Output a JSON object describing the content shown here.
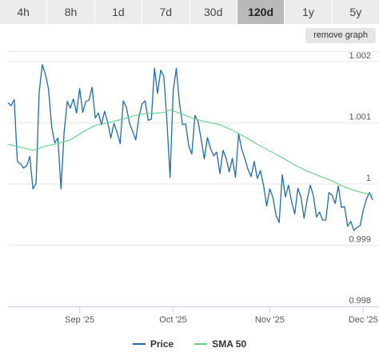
{
  "timeframes": [
    "4h",
    "8h",
    "1d",
    "7d",
    "30d",
    "120d",
    "1y",
    "5y"
  ],
  "active_timeframe": "120d",
  "remove_graph_label": "remove graph",
  "colors": {
    "price": "#1f6bad",
    "sma": "#5fd185",
    "active_tab": "#b9b9b9",
    "tab_bg": "#ececec"
  },
  "legend": {
    "price": "Price",
    "sma": "SMA 50"
  },
  "chart_data": {
    "type": "line",
    "y_ticks": [
      "1.002",
      "1.001",
      "1",
      "0.999",
      "0.998"
    ],
    "y_tick_values": [
      1.002,
      1.001,
      1.0,
      0.999,
      0.998
    ],
    "ylim": [
      0.998,
      1.00217
    ],
    "x_ticks": [
      "Sep '25",
      "Oct '25",
      "Nov '25",
      "Dec '25"
    ],
    "x_tick_positions": [
      23,
      53,
      84,
      114
    ],
    "xlim": [
      0,
      117
    ],
    "grid": true,
    "legend_position": "bottom",
    "series": [
      {
        "name": "Price",
        "x": [
          0,
          1,
          2,
          3,
          4,
          5,
          6,
          7,
          8,
          9,
          10,
          11,
          12,
          13,
          14,
          15,
          16,
          17,
          18,
          19,
          20,
          21,
          22,
          23,
          24,
          25,
          26,
          27,
          28,
          29,
          30,
          31,
          32,
          33,
          34,
          35,
          36,
          37,
          38,
          39,
          40,
          41,
          42,
          43,
          44,
          45,
          46,
          47,
          48,
          49,
          50,
          51,
          52,
          53,
          54,
          55,
          56,
          57,
          58,
          59,
          60,
          61,
          62,
          63,
          64,
          65,
          66,
          67,
          68,
          69,
          70,
          71,
          72,
          73,
          74,
          75,
          76,
          77,
          78,
          79,
          80,
          81,
          82,
          83,
          84,
          85,
          86,
          87,
          88,
          89,
          90,
          91,
          92,
          93,
          94,
          95,
          96,
          97,
          98,
          99,
          100,
          101,
          102,
          103,
          104,
          105,
          106,
          107,
          108,
          109,
          110,
          111,
          112,
          113,
          114,
          115,
          116,
          117
        ],
        "values": [
          1.00133,
          1.00128,
          1.00138,
          1.00037,
          1.00033,
          1.00026,
          1.0003,
          1.00045,
          0.99992,
          1.00001,
          1.0015,
          1.00195,
          1.00179,
          1.00155,
          1.00094,
          1.00067,
          1.00075,
          0.99992,
          1.00085,
          1.00135,
          1.00124,
          1.00139,
          1.00116,
          1.00156,
          1.00117,
          1.00135,
          1.00137,
          1.00158,
          1.00108,
          1.00116,
          1.00097,
          1.00119,
          1.00101,
          1.00075,
          1.00099,
          1.00085,
          1.00066,
          1.00136,
          1.00125,
          1.00099,
          1.00086,
          1.00072,
          1.00109,
          1.00131,
          1.00136,
          1.00104,
          1.00106,
          1.00189,
          1.00148,
          1.00186,
          1.00176,
          1.00102,
          1.00011,
          1.00152,
          1.00189,
          1.00133,
          1.00097,
          1.00098,
          1.00062,
          1.00049,
          1.00112,
          1.00102,
          1.00073,
          1.00041,
          1.00076,
          1.00058,
          1.00046,
          1.00052,
          1.00017,
          1.00055,
          1.00042,
          1.0002,
          1.00042,
          1.00011,
          1.00082,
          1.00057,
          1.00042,
          1.00024,
          1.00012,
          1.00037,
          1.00009,
          1.00022,
          0.99998,
          0.99964,
          0.99992,
          0.99978,
          0.99949,
          0.99937,
          1.00015,
          0.99979,
          0.99998,
          0.99971,
          0.99951,
          0.99993,
          0.99979,
          0.99944,
          0.99975,
          0.99998,
          0.99981,
          0.99946,
          0.99954,
          0.99941,
          0.99941,
          0.99986,
          0.99982,
          0.99968,
          0.99997,
          0.99962,
          0.99963,
          0.99931,
          0.99939,
          0.99924,
          0.99929,
          0.99932,
          0.99957,
          0.99975,
          0.99986,
          0.99974
        ],
        "color": "#1f6bad"
      },
      {
        "name": "SMA 50",
        "x": [
          0,
          4,
          8,
          12,
          16,
          20,
          24,
          28,
          32,
          36,
          40,
          44,
          48,
          50,
          52,
          56,
          60,
          64,
          68,
          72,
          76,
          80,
          84,
          88,
          92,
          96,
          100,
          104,
          108,
          112,
          117
        ],
        "values": [
          1.00065,
          1.0006,
          1.00055,
          1.00062,
          1.00066,
          1.00072,
          1.00085,
          1.00096,
          1.001,
          1.00105,
          1.00111,
          1.00115,
          1.00116,
          1.00117,
          1.00121,
          1.00114,
          1.00106,
          1.00101,
          1.00097,
          1.00088,
          1.00077,
          1.00065,
          1.00054,
          1.00043,
          1.00031,
          1.00021,
          1.00013,
          1.00005,
          0.99995,
          0.99988,
          0.99982
        ],
        "color": "#5fd185"
      }
    ]
  }
}
